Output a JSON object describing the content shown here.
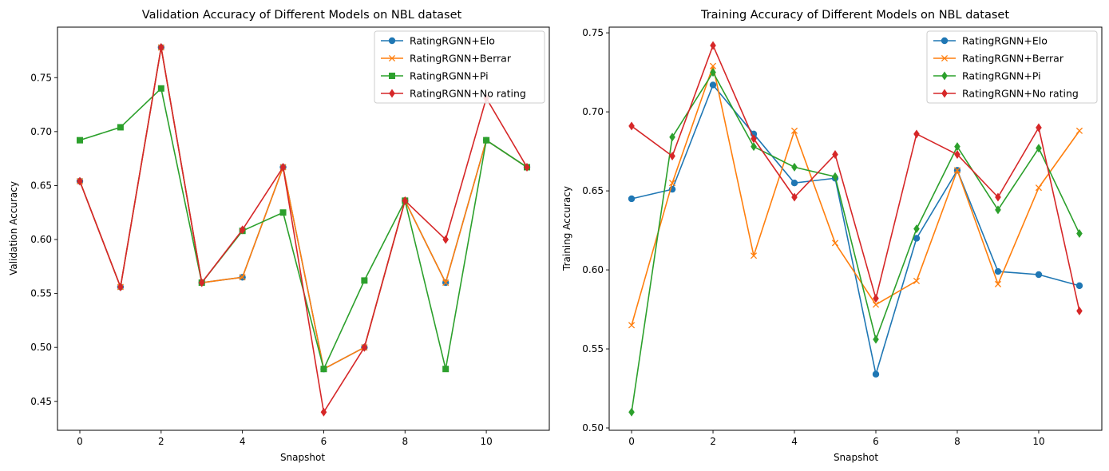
{
  "colors": {
    "Elo": "#1f77b4",
    "Berrar": "#ff7f0e",
    "Pi": "#2ca02c",
    "NoRating": "#d62728"
  },
  "chart_data": [
    {
      "type": "line",
      "title": "Validation Accuracy of Different Models on NBL dataset",
      "xlabel": "Snapshot",
      "ylabel": "Validation Accuracy",
      "x": [
        0,
        1,
        2,
        3,
        4,
        5,
        6,
        7,
        8,
        9,
        10,
        11
      ],
      "xlim": [
        -0.55,
        11.55
      ],
      "ylim": [
        0.4232,
        0.7968
      ],
      "xticks": [
        0,
        2,
        4,
        6,
        8,
        10
      ],
      "xtick_labels": [
        "0",
        "2",
        "4",
        "6",
        "8",
        "10"
      ],
      "yticks": [
        0.45,
        0.5,
        0.55,
        0.6,
        0.65,
        0.7,
        0.75
      ],
      "ytick_labels": [
        "0.45",
        "0.50",
        "0.55",
        "0.60",
        "0.65",
        "0.70",
        "0.75"
      ],
      "legend_position": "top-right",
      "series": [
        {
          "name": "RatingRGNN+Elo",
          "marker": "circle",
          "color": "#1f77b4",
          "values": [
            0.654,
            0.556,
            0.778,
            0.56,
            0.565,
            0.667,
            0.48,
            0.5,
            0.636,
            0.56,
            0.692,
            0.667
          ]
        },
        {
          "name": "RatingRGNN+Berrar",
          "marker": "x",
          "color": "#ff7f0e",
          "values": [
            0.654,
            0.556,
            0.778,
            0.56,
            0.565,
            0.667,
            0.48,
            0.5,
            0.636,
            0.56,
            0.692,
            0.667
          ]
        },
        {
          "name": "RatingRGNN+Pi",
          "marker": "square",
          "color": "#2ca02c",
          "values": [
            0.692,
            0.704,
            0.74,
            0.56,
            0.608,
            0.625,
            0.48,
            0.562,
            0.636,
            0.48,
            0.692,
            0.667
          ]
        },
        {
          "name": "RatingRGNN+No rating",
          "marker": "diamond",
          "color": "#d62728",
          "values": [
            0.654,
            0.556,
            0.778,
            0.56,
            0.609,
            0.667,
            0.44,
            0.5,
            0.636,
            0.6,
            0.731,
            0.667
          ]
        }
      ]
    },
    {
      "type": "line",
      "title": "Training Accuracy of Different Models on NBL dataset",
      "xlabel": "Snapshot",
      "ylabel": "Training Accuracy",
      "x": [
        0,
        1,
        2,
        3,
        4,
        5,
        6,
        7,
        8,
        9,
        10,
        11
      ],
      "xlim": [
        -0.55,
        11.55
      ],
      "ylim": [
        0.4985,
        0.7536
      ],
      "xticks": [
        0,
        2,
        4,
        6,
        8,
        10
      ],
      "xtick_labels": [
        "0",
        "2",
        "4",
        "6",
        "8",
        "10"
      ],
      "yticks": [
        0.5,
        0.55,
        0.6,
        0.65,
        0.7,
        0.75
      ],
      "ytick_labels": [
        "0.50",
        "0.55",
        "0.60",
        "0.65",
        "0.70",
        "0.75"
      ],
      "legend_position": "top-right",
      "series": [
        {
          "name": "RatingRGNN+Elo",
          "marker": "circle",
          "color": "#1f77b4",
          "values": [
            0.645,
            0.651,
            0.717,
            0.686,
            0.655,
            0.658,
            0.534,
            0.62,
            0.663,
            0.599,
            0.597,
            0.59
          ]
        },
        {
          "name": "RatingRGNN+Berrar",
          "marker": "x",
          "color": "#ff7f0e",
          "values": [
            0.565,
            0.655,
            0.729,
            0.609,
            0.688,
            0.617,
            0.578,
            0.593,
            0.663,
            0.591,
            0.652,
            0.688
          ]
        },
        {
          "name": "RatingRGNN+Pi",
          "marker": "diamond",
          "color": "#2ca02c",
          "values": [
            0.51,
            0.684,
            0.725,
            0.678,
            0.665,
            0.659,
            0.556,
            0.626,
            0.678,
            0.638,
            0.677,
            0.623
          ]
        },
        {
          "name": "RatingRGNN+No rating",
          "marker": "diamond",
          "color": "#d62728",
          "values": [
            0.691,
            0.672,
            0.742,
            0.683,
            0.646,
            0.673,
            0.582,
            0.686,
            0.673,
            0.646,
            0.69,
            0.574
          ]
        }
      ]
    }
  ]
}
